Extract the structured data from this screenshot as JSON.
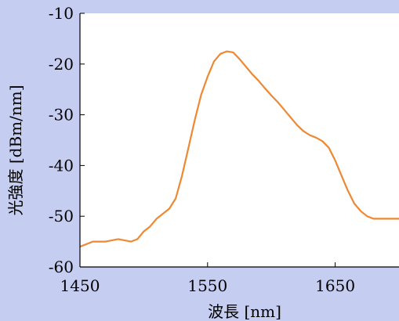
{
  "chart_data": {
    "type": "line",
    "title": "",
    "xlabel": "波長 [nm]",
    "ylabel": "光強度 [dBm/nm]",
    "xlim": [
      1450,
      1700
    ],
    "ylim": [
      -60,
      -10
    ],
    "xticks": [
      1450,
      1550,
      1650
    ],
    "yticks": [
      -60,
      -50,
      -40,
      -30,
      -20,
      -10
    ],
    "grid": false,
    "legend": "none",
    "background_color": "#c5cdf0",
    "plot_area_color": "#ffffff",
    "series": [
      {
        "color": "#ee8833",
        "x": [
          1450,
          1460,
          1470,
          1480,
          1490,
          1495,
          1500,
          1505,
          1510,
          1515,
          1520,
          1525,
          1530,
          1535,
          1540,
          1545,
          1550,
          1555,
          1560,
          1565,
          1570,
          1575,
          1580,
          1585,
          1590,
          1595,
          1600,
          1605,
          1610,
          1615,
          1620,
          1625,
          1630,
          1635,
          1640,
          1645,
          1650,
          1655,
          1660,
          1665,
          1670,
          1675,
          1680,
          1685,
          1690,
          1695,
          1700
        ],
        "y": [
          -56.0,
          -55.0,
          -55.0,
          -54.5,
          -55.0,
          -54.5,
          -53.0,
          -52.0,
          -50.5,
          -49.5,
          -48.5,
          -46.5,
          -42.0,
          -36.5,
          -31.0,
          -26.0,
          -22.5,
          -19.5,
          -18.0,
          -17.5,
          -17.7,
          -19.0,
          -20.5,
          -22.0,
          -23.3,
          -24.8,
          -26.2,
          -27.5,
          -29.0,
          -30.5,
          -32.0,
          -33.2,
          -34.0,
          -34.5,
          -35.2,
          -36.5,
          -39.0,
          -42.0,
          -45.0,
          -47.5,
          -49.0,
          -50.0,
          -50.5,
          -50.5,
          -50.5,
          -50.5,
          -50.5
        ]
      }
    ]
  }
}
